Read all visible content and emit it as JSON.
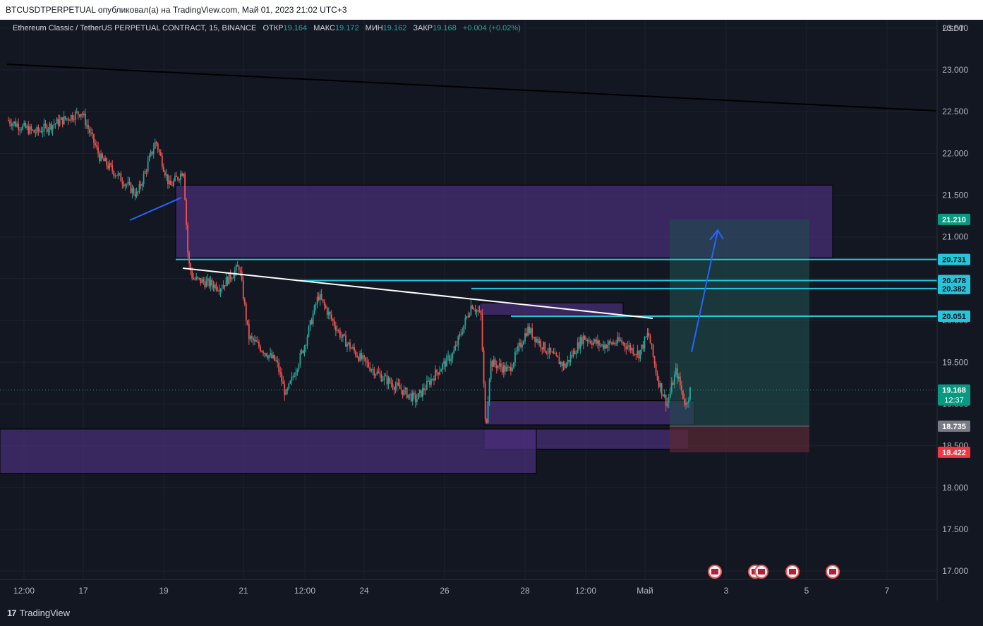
{
  "header": {
    "publish_line": "BTCUSDTPERPETUAL опубликовал(а) на TradingView.com, Май 01, 2023 21:02 UTC+3"
  },
  "legend": {
    "symbol": "Ethereum Classic / TetherUS PERPETUAL CONTRACT, 15, BINANCE",
    "open_label": "ОТКР",
    "open_value": "19.164",
    "high_label": "МАКС",
    "high_value": "19.172",
    "low_label": "МИН",
    "low_value": "19.162",
    "close_label": "ЗАКР",
    "close_value": "19.168",
    "change": "+0.004 (+0.02%)"
  },
  "colors": {
    "background": "#131722",
    "up": "#26a69a",
    "down": "#ef5350",
    "zone_fill": "#4a2f7a",
    "cyan_line": "#26c6da",
    "target_fill": "#1f4e4c",
    "stop_fill": "#5b2a33",
    "arrow": "#2962ff"
  },
  "chart_data": {
    "type": "candlestick",
    "currency": "USDT",
    "ylim": [
      16.9,
      23.6
    ],
    "y_ticks": [
      "23.500",
      "23.000",
      "22.500",
      "22.000",
      "21.500",
      "21.000",
      "20.500",
      "20.000",
      "19.500",
      "19.000",
      "18.500",
      "18.000",
      "17.500",
      "17.000"
    ],
    "x_ticks": [
      "12:00",
      "17",
      "19",
      "21",
      "12:00",
      "24",
      "26",
      "28",
      "12:00",
      "Май",
      "3",
      "5",
      "7"
    ],
    "price_path": [
      [
        0,
        22.4
      ],
      [
        0.03,
        22.25
      ],
      [
        0.08,
        22.5
      ],
      [
        0.1,
        21.95
      ],
      [
        0.14,
        21.5
      ],
      [
        0.16,
        22.15
      ],
      [
        0.175,
        21.6
      ],
      [
        0.19,
        21.8
      ],
      [
        0.195,
        20.7
      ],
      [
        0.2,
        20.5
      ],
      [
        0.23,
        20.4
      ],
      [
        0.25,
        20.65
      ],
      [
        0.26,
        19.8
      ],
      [
        0.29,
        19.5
      ],
      [
        0.3,
        19.1
      ],
      [
        0.32,
        19.7
      ],
      [
        0.335,
        20.3
      ],
      [
        0.36,
        19.8
      ],
      [
        0.38,
        19.55
      ],
      [
        0.4,
        19.35
      ],
      [
        0.42,
        19.2
      ],
      [
        0.44,
        19.05
      ],
      [
        0.46,
        19.35
      ],
      [
        0.48,
        19.6
      ],
      [
        0.5,
        20.2
      ],
      [
        0.51,
        20.05
      ],
      [
        0.515,
        18.65
      ],
      [
        0.52,
        19.5
      ],
      [
        0.54,
        19.4
      ],
      [
        0.56,
        19.9
      ],
      [
        0.58,
        19.65
      ],
      [
        0.6,
        19.45
      ],
      [
        0.62,
        19.8
      ],
      [
        0.64,
        19.7
      ],
      [
        0.66,
        19.75
      ],
      [
        0.68,
        19.6
      ],
      [
        0.69,
        19.85
      ],
      [
        0.7,
        19.3
      ],
      [
        0.71,
        19.0
      ],
      [
        0.72,
        19.4
      ],
      [
        0.73,
        18.98
      ],
      [
        0.735,
        19.17
      ]
    ],
    "price_labels": [
      {
        "value": 21.21,
        "label": "21.210",
        "kind": "green"
      },
      {
        "value": 20.731,
        "label": "20.731",
        "kind": "cyan"
      },
      {
        "value": 20.478,
        "label": "20.478",
        "kind": "cyan"
      },
      {
        "value": 20.382,
        "label": "20.382",
        "kind": "cyan"
      },
      {
        "value": 20.051,
        "label": "20.051",
        "kind": "cyan"
      },
      {
        "value": 19.168,
        "label": "19.168",
        "sub": "12:37",
        "kind": "green"
      },
      {
        "value": 18.735,
        "label": "18.735",
        "kind": "gray"
      },
      {
        "value": 18.422,
        "label": "18.422",
        "kind": "red"
      }
    ],
    "horizontal_lines": [
      20.731,
      20.478,
      20.382,
      20.051
    ],
    "zones": [
      {
        "from": 20.75,
        "to": 21.62
      },
      {
        "from": 18.75,
        "to": 19.04
      },
      {
        "from": 18.46,
        "to": 18.7
      },
      {
        "from": 18.17,
        "to": 18.7
      },
      {
        "from": 20.06,
        "to": 20.21
      }
    ],
    "long_position": {
      "entry": 18.735,
      "target": 21.21,
      "stop": 18.422
    }
  },
  "footer": {
    "brand": "TradingView"
  }
}
